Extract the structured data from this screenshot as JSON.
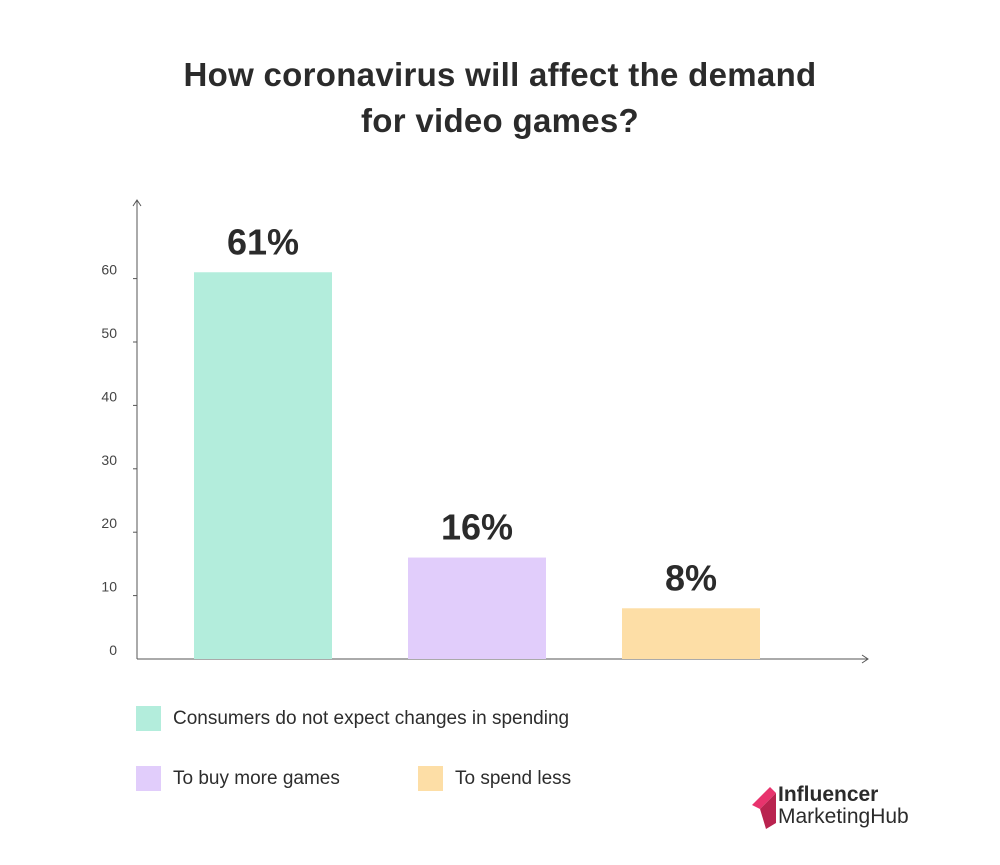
{
  "title": {
    "line1": "How coronavirus will affect the demand",
    "line2": "for video games?"
  },
  "chart_data": {
    "type": "bar",
    "categories": [
      "Consumers do not expect changes in spending",
      "To buy more games",
      "To spend less"
    ],
    "values": [
      61,
      16,
      8
    ],
    "data_labels": [
      "61%",
      "16%",
      "8%"
    ],
    "colors": [
      "#b3eddc",
      "#e1cdfb",
      "#fddea6"
    ],
    "yticks": [
      0,
      10,
      20,
      30,
      40,
      50,
      60
    ],
    "ylim": [
      0,
      70
    ],
    "grid": false,
    "legend_placement": "bottom"
  },
  "legend": {
    "items": [
      {
        "label": "Consumers do not expect changes in spending",
        "color": "#b3eddc"
      },
      {
        "label": "To buy more games",
        "color": "#e1cdfb"
      },
      {
        "label": "To spend less",
        "color": "#fddea6"
      }
    ]
  },
  "logo": {
    "line1": "Influencer",
    "line2": "MarketingHub",
    "colors": [
      "#e8336d",
      "#b9234f"
    ]
  }
}
